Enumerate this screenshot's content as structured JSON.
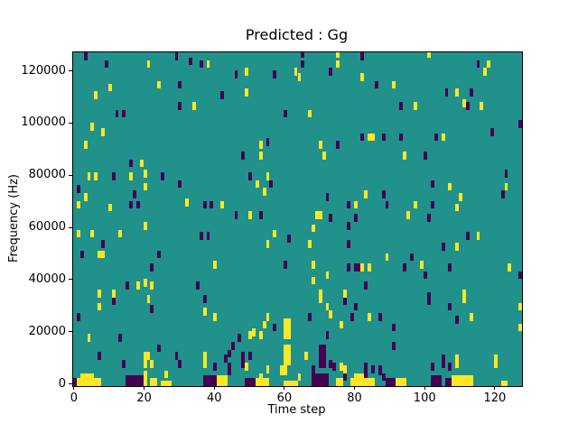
{
  "chart_data": {
    "type": "heatmap",
    "title": "Predicted : Gg",
    "xlabel": "Time step",
    "ylabel": "Frequency (Hz)",
    "x_ticks": [
      0,
      20,
      40,
      60,
      80,
      100,
      120
    ],
    "y_ticks": [
      0,
      20000,
      40000,
      60000,
      80000,
      100000,
      120000
    ],
    "x_range": [
      -0.5,
      127.5
    ],
    "y_range": [
      -500,
      127500
    ],
    "grid_cols": 128,
    "grid_rows": 128,
    "row_height_hz": 1000,
    "legend": null,
    "colors": {
      "background": "#21918c",
      "high": "#fde725",
      "low": "#440154",
      "axes": "#000000",
      "figure": "#ffffff"
    },
    "marks": [
      [
        3,
        126,
        0
      ],
      [
        9,
        123,
        0
      ],
      [
        21,
        123,
        1
      ],
      [
        29,
        126,
        0
      ],
      [
        33,
        124,
        0
      ],
      [
        36,
        123,
        0
      ],
      [
        38,
        123,
        1
      ],
      [
        46,
        119,
        0
      ],
      [
        49,
        120,
        1
      ],
      [
        57,
        119,
        0
      ],
      [
        63,
        120,
        1
      ],
      [
        24,
        115,
        1
      ],
      [
        30,
        115,
        0
      ],
      [
        10,
        114,
        1
      ],
      [
        6,
        111,
        1
      ],
      [
        42,
        111,
        0
      ],
      [
        49,
        112,
        1
      ],
      [
        30,
        107,
        0
      ],
      [
        34,
        107,
        1
      ],
      [
        12,
        104,
        0
      ],
      [
        14,
        104,
        0
      ],
      [
        60,
        104,
        0
      ],
      [
        5,
        99,
        1
      ],
      [
        8,
        97,
        1
      ],
      [
        3,
        92,
        1
      ],
      [
        53,
        92,
        1
      ],
      [
        55,
        93,
        0
      ],
      [
        48,
        88,
        0
      ],
      [
        53,
        88,
        1
      ],
      [
        16,
        85,
        0
      ],
      [
        19,
        85,
        1
      ],
      [
        65,
        127,
        0
      ],
      [
        75,
        127,
        1
      ],
      [
        82,
        126,
        0
      ],
      [
        101,
        127,
        1
      ],
      [
        65,
        123,
        0
      ],
      [
        75,
        123,
        1
      ],
      [
        115,
        123,
        0
      ],
      [
        118,
        123,
        1
      ],
      [
        73,
        120,
        0
      ],
      [
        64,
        118,
        1
      ],
      [
        82,
        118,
        1
      ],
      [
        117,
        120,
        1
      ],
      [
        86,
        115,
        0
      ],
      [
        91,
        115,
        1
      ],
      [
        106,
        112,
        0
      ],
      [
        109,
        112,
        1
      ],
      [
        113,
        112,
        0
      ],
      [
        111,
        108,
        1
      ],
      [
        112,
        107,
        0
      ],
      [
        116,
        107,
        1
      ],
      [
        93,
        107,
        0
      ],
      [
        97,
        107,
        1
      ],
      [
        67,
        104,
        1
      ],
      [
        127,
        100,
        0
      ],
      [
        82,
        95,
        0
      ],
      [
        84,
        95,
        1
      ],
      [
        85,
        95,
        1
      ],
      [
        88,
        95,
        0
      ],
      [
        93,
        95,
        0
      ],
      [
        103,
        95,
        0
      ],
      [
        105,
        95,
        1
      ],
      [
        119,
        97,
        0
      ],
      [
        70,
        92,
        1
      ],
      [
        75,
        92,
        0
      ],
      [
        71,
        88,
        1
      ],
      [
        94,
        88,
        1
      ],
      [
        100,
        88,
        0
      ],
      [
        4,
        80,
        1
      ],
      [
        6,
        80,
        1
      ],
      [
        11,
        80,
        0
      ],
      [
        16,
        80,
        1
      ],
      [
        20,
        81,
        1
      ],
      [
        25,
        80,
        0
      ],
      [
        30,
        77,
        0
      ],
      [
        50,
        80,
        0
      ],
      [
        55,
        80,
        1
      ],
      [
        52,
        77,
        1
      ],
      [
        56,
        77,
        0
      ],
      [
        1,
        75,
        0
      ],
      [
        3,
        72,
        1
      ],
      [
        17,
        73,
        0
      ],
      [
        20,
        76,
        1
      ],
      [
        16,
        69,
        0
      ],
      [
        18,
        69,
        0
      ],
      [
        10,
        68,
        1
      ],
      [
        1,
        69,
        1
      ],
      [
        32,
        70,
        1
      ],
      [
        37,
        69,
        0
      ],
      [
        39,
        69,
        0
      ],
      [
        42,
        69,
        1
      ],
      [
        46,
        65,
        0
      ],
      [
        50,
        65,
        1
      ],
      [
        53,
        65,
        0
      ],
      [
        54,
        74,
        1
      ],
      [
        20,
        61,
        1
      ],
      [
        1,
        58,
        1
      ],
      [
        5,
        58,
        1
      ],
      [
        8,
        54,
        0
      ],
      [
        13,
        58,
        1
      ],
      [
        36,
        57,
        0
      ],
      [
        38,
        57,
        0
      ],
      [
        57,
        58,
        1
      ],
      [
        61,
        56,
        0
      ],
      [
        55,
        54,
        1
      ],
      [
        2,
        50,
        0
      ],
      [
        7,
        50,
        1
      ],
      [
        8,
        50,
        1
      ],
      [
        24,
        50,
        0
      ],
      [
        22,
        45,
        0
      ],
      [
        40,
        46,
        1
      ],
      [
        60,
        46,
        0
      ],
      [
        7,
        35,
        1
      ],
      [
        15,
        38,
        0
      ],
      [
        18,
        38,
        1
      ],
      [
        20,
        39,
        1
      ],
      [
        22,
        38,
        1
      ],
      [
        35,
        38,
        0
      ],
      [
        11,
        35,
        1
      ],
      [
        72,
        72,
        0
      ],
      [
        83,
        73,
        1
      ],
      [
        88,
        73,
        0
      ],
      [
        80,
        69,
        1
      ],
      [
        78,
        69,
        0
      ],
      [
        89,
        69,
        0
      ],
      [
        69,
        65,
        1
      ],
      [
        70,
        65,
        1
      ],
      [
        73,
        64,
        0
      ],
      [
        80,
        64,
        0
      ],
      [
        68,
        60,
        1
      ],
      [
        78,
        61,
        0
      ],
      [
        67,
        54,
        1
      ],
      [
        78,
        54,
        0
      ],
      [
        89,
        49,
        1
      ],
      [
        68,
        46,
        1
      ],
      [
        78,
        45,
        0
      ],
      [
        80,
        45,
        0
      ],
      [
        81,
        45,
        0
      ],
      [
        82,
        45,
        1
      ],
      [
        84,
        45,
        1
      ],
      [
        72,
        42,
        1
      ],
      [
        68,
        40,
        1
      ],
      [
        83,
        38,
        0
      ],
      [
        70,
        35,
        1
      ],
      [
        77,
        35,
        1
      ],
      [
        123,
        81,
        0
      ],
      [
        102,
        77,
        0
      ],
      [
        107,
        76,
        1
      ],
      [
        123,
        76,
        1
      ],
      [
        122,
        73,
        0
      ],
      [
        97,
        69,
        1
      ],
      [
        102,
        69,
        0
      ],
      [
        110,
        72,
        1
      ],
      [
        95,
        65,
        1
      ],
      [
        101,
        64,
        0
      ],
      [
        109,
        68,
        1
      ],
      [
        112,
        57,
        0
      ],
      [
        115,
        57,
        1
      ],
      [
        105,
        53,
        0
      ],
      [
        109,
        53,
        1
      ],
      [
        96,
        49,
        0
      ],
      [
        94,
        45,
        0
      ],
      [
        99,
        46,
        1
      ],
      [
        107,
        45,
        0
      ],
      [
        124,
        45,
        1
      ],
      [
        127,
        42,
        0
      ],
      [
        100,
        42,
        0
      ],
      [
        111,
        35,
        1
      ],
      [
        101,
        34,
        0
      ],
      [
        7,
        30,
        1
      ],
      [
        11,
        32,
        0
      ],
      [
        21,
        33,
        1
      ],
      [
        22,
        29,
        0
      ],
      [
        37,
        33,
        0
      ],
      [
        37,
        28,
        1
      ],
      [
        40,
        26,
        1
      ],
      [
        1,
        26,
        0
      ],
      [
        4,
        18,
        1
      ],
      [
        13,
        18,
        0
      ],
      [
        24,
        14,
        0
      ],
      [
        51,
        20,
        1
      ],
      [
        47,
        18,
        0
      ],
      [
        50,
        19,
        1
      ],
      [
        45,
        15,
        0
      ],
      [
        44,
        12,
        0
      ],
      [
        20,
        11,
        1
      ],
      [
        21,
        11,
        1
      ],
      [
        7,
        11,
        0
      ],
      [
        29,
        11,
        0
      ],
      [
        37,
        11,
        1
      ],
      [
        43,
        10,
        0
      ],
      [
        48,
        11,
        0
      ],
      [
        50,
        11,
        0
      ],
      [
        53,
        19,
        1
      ],
      [
        70,
        33,
        1
      ],
      [
        77,
        32,
        0
      ],
      [
        72,
        30,
        1
      ],
      [
        80,
        30,
        0
      ],
      [
        55,
        26,
        1
      ],
      [
        67,
        26,
        0
      ],
      [
        73,
        27,
        1
      ],
      [
        79,
        26,
        0
      ],
      [
        84,
        26,
        1
      ],
      [
        87,
        26,
        0
      ],
      [
        54,
        23,
        1
      ],
      [
        57,
        22,
        0
      ],
      [
        76,
        23,
        1
      ],
      [
        72,
        19,
        0
      ],
      [
        66,
        11,
        1
      ],
      [
        101,
        32,
        0
      ],
      [
        111,
        33,
        1
      ],
      [
        107,
        30,
        0
      ],
      [
        109,
        25,
        0
      ],
      [
        113,
        26,
        1
      ],
      [
        127,
        30,
        1
      ],
      [
        127,
        22,
        1
      ],
      [
        91,
        22,
        0
      ],
      [
        91,
        15,
        0
      ],
      [
        105,
        10,
        0
      ],
      [
        109,
        10,
        1
      ],
      [
        120,
        10,
        1
      ],
      [
        20,
        8,
        1
      ],
      [
        22,
        8,
        1
      ],
      [
        30,
        8,
        0
      ],
      [
        37,
        8,
        1
      ],
      [
        40,
        7,
        0
      ],
      [
        44,
        7,
        0
      ],
      [
        48,
        8,
        0
      ],
      [
        49,
        7,
        1
      ],
      [
        14,
        8,
        0
      ],
      [
        73,
        8,
        0
      ],
      [
        74,
        7,
        0
      ],
      [
        85,
        6,
        0
      ],
      [
        77,
        6,
        1
      ],
      [
        87,
        5,
        0
      ],
      [
        102,
        7,
        0
      ],
      [
        105,
        8,
        0
      ],
      [
        107,
        7,
        0
      ],
      [
        109,
        8,
        1
      ],
      [
        120,
        8,
        1
      ],
      [
        44,
        5,
        0
      ],
      [
        55,
        6,
        1
      ],
      [
        68,
        6,
        0
      ],
      [
        76,
        7,
        1
      ],
      [
        87,
        6,
        0
      ],
      [
        53,
        3,
        1
      ],
      [
        64,
        3,
        1
      ],
      [
        77,
        3,
        0
      ],
      [
        88,
        3,
        0
      ],
      [
        26,
        4,
        1
      ]
    ],
    "bands": [
      [
        0,
        1,
        0,
        3,
        0
      ],
      [
        1,
        8,
        0,
        3,
        1
      ],
      [
        2,
        6,
        3,
        5,
        1
      ],
      [
        15,
        20,
        0,
        4,
        0
      ],
      [
        20,
        21,
        0,
        6,
        1
      ],
      [
        22,
        24,
        0,
        3,
        1
      ],
      [
        25,
        28,
        0,
        2,
        1
      ],
      [
        37,
        41,
        0,
        4,
        0
      ],
      [
        41,
        44,
        0,
        4,
        1
      ],
      [
        49,
        52,
        0,
        3,
        0
      ],
      [
        52,
        56,
        0,
        3,
        1
      ],
      [
        60,
        64,
        0,
        2,
        1
      ],
      [
        60,
        62,
        18,
        26,
        1
      ],
      [
        60,
        62,
        8,
        16,
        1
      ],
      [
        59,
        61,
        4,
        8,
        1
      ],
      [
        68,
        73,
        0,
        5,
        0
      ],
      [
        70,
        72,
        7,
        16,
        0
      ],
      [
        75,
        77,
        0,
        3,
        1
      ],
      [
        79,
        86,
        0,
        3,
        1
      ],
      [
        80,
        84,
        3,
        5,
        1
      ],
      [
        83,
        84,
        3,
        9,
        0
      ],
      [
        89,
        92,
        0,
        3,
        0
      ],
      [
        92,
        95,
        0,
        3,
        1
      ],
      [
        102,
        105,
        0,
        4,
        0
      ],
      [
        106,
        108,
        0,
        3,
        0
      ],
      [
        108,
        114,
        0,
        4,
        1
      ],
      [
        122,
        124,
        0,
        2,
        1
      ]
    ]
  }
}
